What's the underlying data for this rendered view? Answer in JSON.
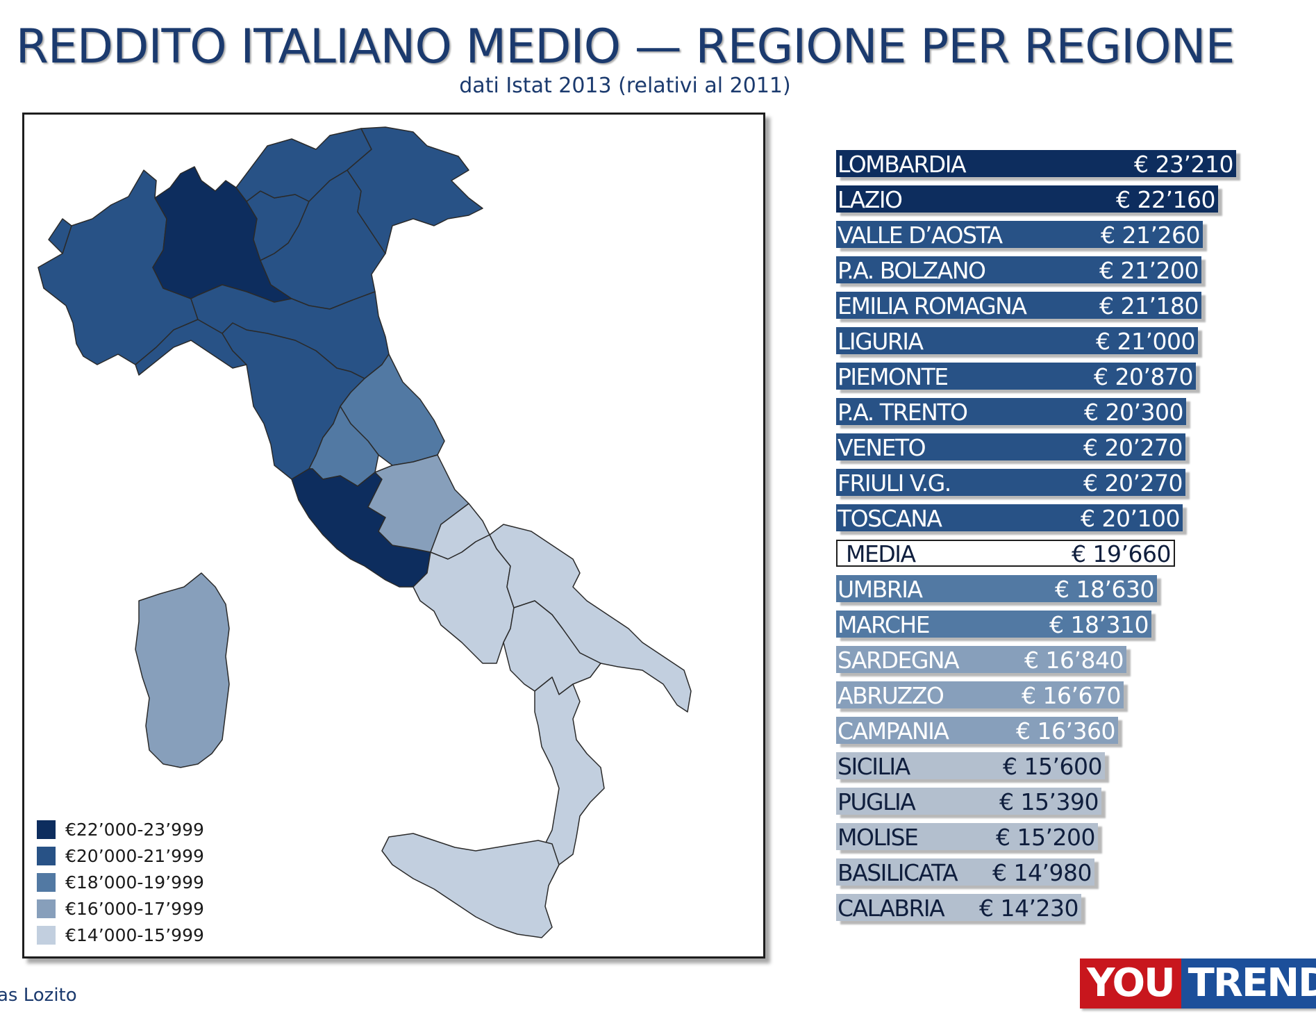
{
  "title": "REDDITO ITALIANO MEDIO — REGIONE PER REGIONE",
  "subtitle": "dati Istat 2013 (relativi al 2011)",
  "credit": "as Lozito",
  "logo": {
    "part1": "YOU",
    "part2": "TREND"
  },
  "colors": {
    "c22": "#0d2d5e",
    "c20": "#285286",
    "c18": "#5279a3",
    "c16": "#879fbb",
    "c14": "#c2cfdf",
    "avg_fill": "#ffffff"
  },
  "legend": [
    {
      "label": "€22’000-23’999",
      "color": "#0d2d5e"
    },
    {
      "label": "€20’000-21’999",
      "color": "#285286"
    },
    {
      "label": "€18’000-19’999",
      "color": "#5279a3"
    },
    {
      "label": "€16’000-17’999",
      "color": "#879fbb"
    },
    {
      "label": "€14’000-15’999",
      "color": "#c2cfdf"
    }
  ],
  "chart_data": {
    "type": "bar",
    "orientation": "horizontal",
    "title": "REDDITO ITALIANO MEDIO — REGIONE PER REGIONE",
    "subtitle": "dati Istat 2013 (relativi al 2011)",
    "categories": [
      "LOMBARDIA",
      "LAZIO",
      "VALLE D’AOSTA",
      "P.A. BOLZANO",
      "EMILIA ROMAGNA",
      "LIGURIA",
      "PIEMONTE",
      "P.A. TRENTO",
      "VENETO",
      "FRIULI V.G.",
      "TOSCANA",
      "MEDIA",
      "UMBRIA",
      "MARCHE",
      "SARDEGNA",
      "ABRUZZO",
      "CAMPANIA",
      "SICILIA",
      "PUGLIA",
      "MOLISE",
      "BASILICATA",
      "CALABRIA"
    ],
    "values": [
      23210,
      22160,
      21260,
      21200,
      21180,
      21000,
      20870,
      20300,
      20270,
      20270,
      20100,
      19660,
      18630,
      18310,
      16840,
      16670,
      16360,
      15600,
      15390,
      15200,
      14980,
      14230
    ],
    "labels": [
      "€ 23’210",
      "€ 22’160",
      "€ 21’260",
      "€ 21’200",
      "€ 21’180",
      "€ 21’000",
      "€ 20’870",
      "€ 20’300",
      "€ 20’270",
      "€ 20’270",
      "€ 20’100",
      "€ 19’660",
      "€ 18’630",
      "€ 18’310",
      "€ 16’840",
      "€ 16’670",
      "€ 16’360",
      "€ 15’600",
      "€ 15’390",
      "€ 15’200",
      "€ 14’980",
      "€ 14’230"
    ],
    "tiers": [
      "c22",
      "c22",
      "c20",
      "c20",
      "c20",
      "c20",
      "c20",
      "c20",
      "c20",
      "c20",
      "c20",
      "avg",
      "c18",
      "c18",
      "c16",
      "c16",
      "c16",
      "c14",
      "c14",
      "c14",
      "c14",
      "c14"
    ]
  }
}
